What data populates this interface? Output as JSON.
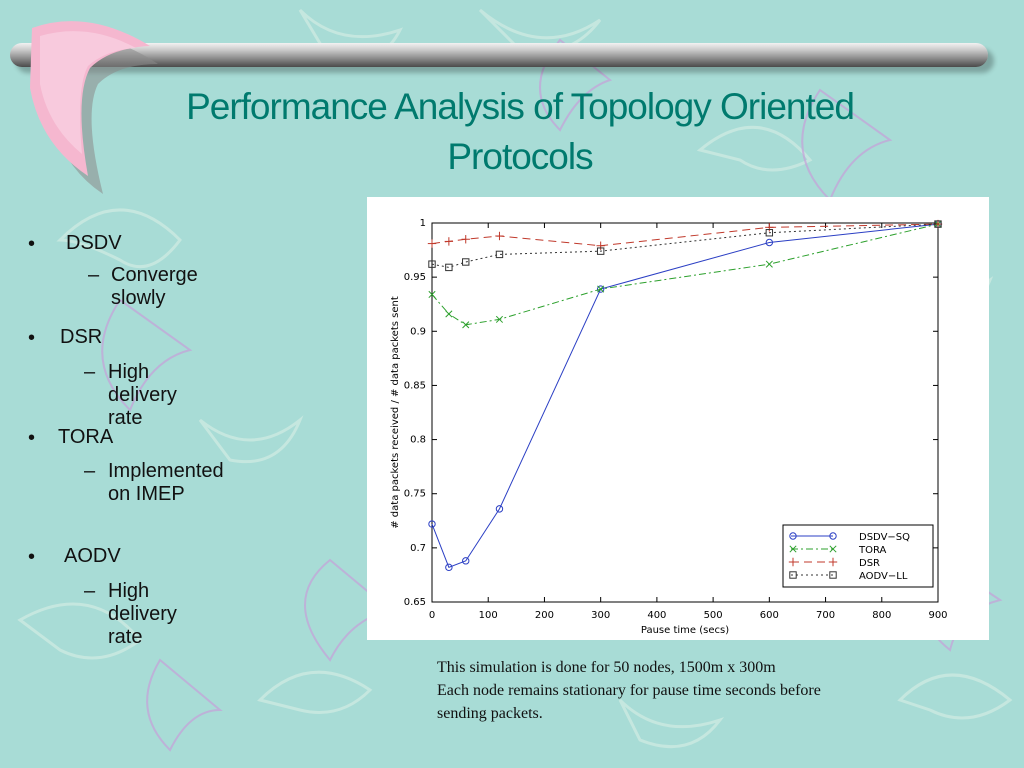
{
  "slide": {
    "title": "Performance Analysis of Topology Oriented Protocols",
    "bullets": [
      {
        "label": "DSDV",
        "sub": "Converge slowly"
      },
      {
        "label": "DSR",
        "sub": "High delivery rate"
      },
      {
        "label": "TORA",
        "sub": "Implemented on IMEP"
      },
      {
        "label": "AODV",
        "sub": "High delivery rate"
      }
    ],
    "bullet_glyph": "•",
    "sub_glyph": "–",
    "caption": [
      "This simulation is done for 50 nodes, 1500m x 300m",
      "Each node remains stationary for pause time seconds before",
      "sending packets."
    ],
    "colors": {
      "background": "#a8dcd6",
      "title": "#007a6e"
    }
  },
  "chart_data": {
    "type": "line",
    "title": "",
    "xlabel": "Pause time (secs)",
    "ylabel": "# data packets received / # data packets sent",
    "xlim": [
      0,
      900
    ],
    "ylim": [
      0.65,
      1.0
    ],
    "xticks": [
      0,
      100,
      200,
      300,
      400,
      500,
      600,
      700,
      800,
      900
    ],
    "yticks": [
      0.65,
      0.7,
      0.75,
      0.8,
      0.85,
      0.9,
      0.95,
      1
    ],
    "ytick_labels": [
      "0.65",
      "0.7",
      "0.75",
      "0.8",
      "0.85",
      "0.9",
      "0.95",
      "1"
    ],
    "grid": false,
    "legend": "bottom-right",
    "series": [
      {
        "name": "DSDV−SQ",
        "color": "#2b3fc4",
        "dash": "",
        "marker": "circle",
        "x": [
          0,
          30,
          60,
          120,
          300,
          600,
          900
        ],
        "y": [
          0.722,
          0.682,
          0.688,
          0.736,
          0.939,
          0.982,
          0.999
        ]
      },
      {
        "name": "TORA",
        "color": "#2ca02c",
        "dash": "7,3,2,3",
        "marker": "x",
        "x": [
          0,
          30,
          60,
          120,
          300,
          600,
          900
        ],
        "y": [
          0.934,
          0.916,
          0.906,
          0.911,
          0.939,
          0.962,
          0.999
        ]
      },
      {
        "name": "DSR",
        "color": "#c0392b",
        "dash": "8,5",
        "marker": "plus",
        "x": [
          0,
          30,
          60,
          120,
          300,
          600,
          900
        ],
        "y": [
          0.981,
          0.983,
          0.985,
          0.988,
          0.979,
          0.996,
          0.999
        ]
      },
      {
        "name": "AODV−LL",
        "color": "#333333",
        "dash": "2,3",
        "marker": "square",
        "x": [
          0,
          30,
          60,
          120,
          300,
          600,
          900
        ],
        "y": [
          0.962,
          0.959,
          0.964,
          0.971,
          0.974,
          0.991,
          0.999
        ]
      }
    ]
  }
}
